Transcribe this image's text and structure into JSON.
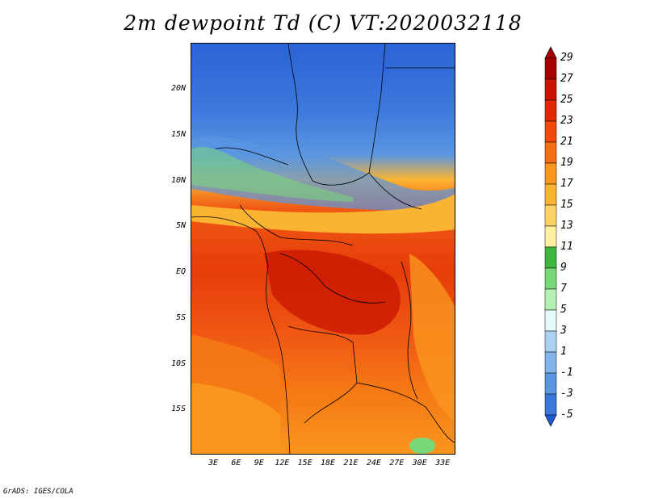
{
  "title": "2m dewpoint Td (C) VT:2020032118",
  "credit": "GrADS: IGES/COLA",
  "lat_ticks": [
    {
      "label": "20N",
      "value": 20
    },
    {
      "label": "15N",
      "value": 15
    },
    {
      "label": "10N",
      "value": 10
    },
    {
      "label": "5N",
      "value": 5
    },
    {
      "label": "EQ",
      "value": 0
    },
    {
      "label": "5S",
      "value": -5
    },
    {
      "label": "10S",
      "value": -10
    },
    {
      "label": "15S",
      "value": -15
    }
  ],
  "lon_ticks": [
    {
      "label": "3E",
      "value": 3
    },
    {
      "label": "6E",
      "value": 6
    },
    {
      "label": "9E",
      "value": 9
    },
    {
      "label": "12E",
      "value": 12
    },
    {
      "label": "15E",
      "value": 15
    },
    {
      "label": "18E",
      "value": 18
    },
    {
      "label": "21E",
      "value": 21
    },
    {
      "label": "24E",
      "value": 24
    },
    {
      "label": "27E",
      "value": 27
    },
    {
      "label": "30E",
      "value": 30
    },
    {
      "label": "33E",
      "value": 33
    }
  ],
  "colorbar": {
    "labels": [
      "29",
      "27",
      "25",
      "23",
      "21",
      "19",
      "17",
      "15",
      "13",
      "11",
      "9",
      "7",
      "5",
      "3",
      "1",
      "-1",
      "-3",
      "-5"
    ],
    "colors": [
      "#a50000",
      "#c81400",
      "#e12800",
      "#f04b0a",
      "#f56e14",
      "#fa961e",
      "#fab432",
      "#fcd264",
      "#fff0a0",
      "#3cb83c",
      "#78d878",
      "#b4f0b4",
      "#e6fafa",
      "#aad2f0",
      "#82b4eb",
      "#5a96e1",
      "#3c78dc",
      "#1e5ad2"
    ]
  }
}
